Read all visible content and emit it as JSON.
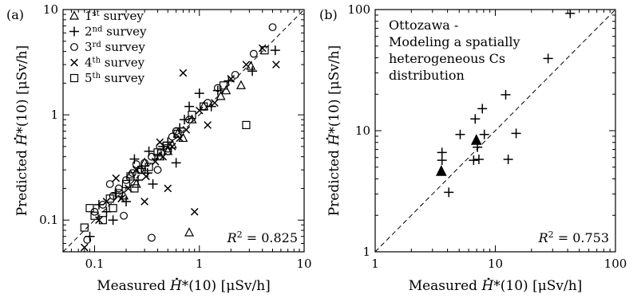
{
  "chart_data": [
    {
      "type": "scatter",
      "panel_label": "(a)",
      "xlabel": {
        "pre": "Measured ",
        "sym": "H",
        "post": "*(10) [μSv/h]"
      },
      "ylabel": {
        "pre": "Predicted ",
        "sym": "H",
        "post": "*(10) [μSv/h]"
      },
      "xscale": "log",
      "yscale": "log",
      "xlim": [
        0.05,
        10
      ],
      "ylim": [
        0.05,
        10
      ],
      "x_ticks": [
        {
          "v": 0.1,
          "label": "0.1"
        },
        {
          "v": 1,
          "label": "1"
        },
        {
          "v": 10,
          "label": "10"
        }
      ],
      "y_ticks": [
        {
          "v": 0.1,
          "label": "0.1"
        },
        {
          "v": 1,
          "label": "1"
        },
        {
          "v": 10,
          "label": "10"
        }
      ],
      "reference_line": "1:1 dashed",
      "legend_position": "top-left",
      "r2": {
        "sym": "R",
        "sup": "2",
        "text": " = 0.825"
      },
      "series": [
        {
          "name": "1st survey",
          "name_parts": [
            "1",
            "st",
            " survey"
          ],
          "marker": "triangle",
          "points": [
            [
              0.19,
              0.17
            ],
            [
              0.25,
              0.22
            ],
            [
              0.3,
              0.35
            ],
            [
              0.42,
              0.4
            ],
            [
              0.55,
              0.52
            ],
            [
              0.7,
              0.6
            ],
            [
              0.85,
              0.9
            ],
            [
              1.1,
              1.2
            ],
            [
              1.6,
              1.5
            ],
            [
              2.5,
              1.9
            ],
            [
              3.1,
              2.9
            ],
            [
              0.62,
              0.66
            ],
            [
              0.22,
              0.27
            ],
            [
              0.8,
              0.076
            ],
            [
              1.8,
              1.7
            ],
            [
              0.5,
              0.45
            ]
          ]
        },
        {
          "name": "2nd survey",
          "name_parts": [
            "2",
            "nd",
            " survey"
          ],
          "marker": "plus",
          "points": [
            [
              0.09,
              0.07
            ],
            [
              0.13,
              0.12
            ],
            [
              0.16,
              0.18
            ],
            [
              0.2,
              0.15
            ],
            [
              0.26,
              0.24
            ],
            [
              0.32,
              0.28
            ],
            [
              0.4,
              0.42
            ],
            [
              0.5,
              0.55
            ],
            [
              0.65,
              0.75
            ],
            [
              0.8,
              1.2
            ],
            [
              1.0,
              1.6
            ],
            [
              1.3,
              1.2
            ],
            [
              1.9,
              2.1
            ],
            [
              3.2,
              2.6
            ],
            [
              5.3,
              4.1
            ],
            [
              0.28,
              0.31
            ],
            [
              0.36,
              0.22
            ],
            [
              0.45,
              0.5
            ],
            [
              0.15,
              0.1
            ],
            [
              0.6,
              0.35
            ],
            [
              0.72,
              0.9
            ],
            [
              0.24,
              0.38
            ],
            [
              0.11,
              0.14
            ],
            [
              1.5,
              1.7
            ],
            [
              0.33,
              0.45
            ]
          ]
        },
        {
          "name": "3rd survey",
          "name_parts": [
            "3",
            "rd",
            " survey"
          ],
          "marker": "circle",
          "points": [
            [
              0.085,
              0.065
            ],
            [
              0.1,
              0.12
            ],
            [
              0.12,
              0.14
            ],
            [
              0.15,
              0.17
            ],
            [
              0.17,
              0.2
            ],
            [
              0.2,
              0.24
            ],
            [
              0.23,
              0.28
            ],
            [
              0.27,
              0.3
            ],
            [
              0.3,
              0.35
            ],
            [
              0.35,
              0.4
            ],
            [
              0.42,
              0.5
            ],
            [
              0.5,
              0.45
            ],
            [
              0.6,
              0.7
            ],
            [
              0.8,
              0.9
            ],
            [
              1.2,
              1.3
            ],
            [
              1.5,
              1.8
            ],
            [
              2.2,
              2.4
            ],
            [
              3.3,
              3.8
            ],
            [
              5.0,
              6.8
            ],
            [
              0.35,
              0.068
            ],
            [
              0.14,
              0.22
            ],
            [
              0.55,
              0.62
            ],
            [
              0.19,
              0.11
            ],
            [
              0.25,
              0.34
            ],
            [
              0.4,
              0.3
            ]
          ]
        },
        {
          "name": "4th survey",
          "name_parts": [
            "4",
            "th",
            " survey"
          ],
          "marker": "cross",
          "points": [
            [
              0.08,
              0.055
            ],
            [
              0.11,
              0.1
            ],
            [
              0.13,
              0.15
            ],
            [
              0.18,
              0.16
            ],
            [
              0.21,
              0.2
            ],
            [
              0.25,
              0.3
            ],
            [
              0.31,
              0.26
            ],
            [
              0.38,
              0.36
            ],
            [
              0.45,
              0.4
            ],
            [
              0.55,
              0.5
            ],
            [
              0.65,
              0.6
            ],
            [
              0.75,
              0.72
            ],
            [
              1.0,
              1.1
            ],
            [
              1.4,
              1.3
            ],
            [
              2.0,
              2.2
            ],
            [
              2.8,
              3.0
            ],
            [
              4.0,
              4.3
            ],
            [
              5.4,
              3.0
            ],
            [
              0.7,
              2.5
            ],
            [
              0.9,
              0.12
            ],
            [
              0.5,
              0.2
            ],
            [
              0.3,
              0.15
            ],
            [
              1.2,
              0.8
            ],
            [
              0.16,
              0.25
            ],
            [
              0.42,
              0.55
            ]
          ]
        },
        {
          "name": "5th survey",
          "name_parts": [
            "5",
            "th",
            " survey"
          ],
          "marker": "square",
          "points": [
            [
              0.08,
              0.085
            ],
            [
              0.1,
              0.11
            ],
            [
              0.12,
              0.1
            ],
            [
              0.14,
              0.16
            ],
            [
              0.17,
              0.18
            ],
            [
              0.2,
              0.22
            ],
            [
              0.24,
              0.2
            ],
            [
              0.28,
              0.3
            ],
            [
              0.33,
              0.32
            ],
            [
              0.4,
              0.44
            ],
            [
              0.5,
              0.48
            ],
            [
              0.62,
              0.66
            ],
            [
              0.85,
              1.0
            ],
            [
              1.1,
              1.2
            ],
            [
              1.7,
              1.9
            ],
            [
              2.8,
              0.8
            ],
            [
              4.2,
              4.1
            ],
            [
              0.09,
              0.13
            ],
            [
              0.15,
              0.13
            ],
            [
              0.22,
              0.26
            ]
          ]
        }
      ]
    },
    {
      "type": "scatter",
      "panel_label": "(b)",
      "xlabel": {
        "pre": "Measured ",
        "sym": "H",
        "post": "*(10) [μSv/h]"
      },
      "ylabel": {
        "pre": "Predicted ",
        "sym": "H",
        "post": "*(10) [μSv/h]"
      },
      "xscale": "log",
      "yscale": "log",
      "xlim": [
        1,
        100
      ],
      "ylim": [
        1,
        100
      ],
      "x_ticks": [
        {
          "v": 1,
          "label": "1"
        },
        {
          "v": 10,
          "label": "10"
        },
        {
          "v": 100,
          "label": "100"
        }
      ],
      "y_ticks": [
        {
          "v": 1,
          "label": "1"
        },
        {
          "v": 10,
          "label": "10"
        },
        {
          "v": 100,
          "label": "100"
        }
      ],
      "reference_line": "1:1 dashed",
      "annotation": [
        "Ottozawa -",
        "Modeling a spatially",
        "heterogeneous Cs",
        "distribution"
      ],
      "r2": {
        "sym": "R",
        "sup": "2",
        "text": " = 0.753"
      },
      "series": [
        {
          "marker": "plus",
          "points": [
            [
              3.6,
              6.6
            ],
            [
              3.6,
              5.7
            ],
            [
              4.1,
              3.1
            ],
            [
              5.1,
              9.3
            ],
            [
              6.6,
              5.7
            ],
            [
              6.8,
              12.5
            ],
            [
              7.1,
              7.3
            ],
            [
              7.3,
              5.8
            ],
            [
              7.8,
              15.2
            ],
            [
              8.1,
              9.3
            ],
            [
              12.2,
              19.8
            ],
            [
              12.8,
              5.8
            ],
            [
              14.9,
              9.5
            ],
            [
              27.5,
              39.5
            ],
            [
              42,
              93
            ]
          ]
        },
        {
          "marker": "filled-triangle",
          "points": [
            [
              3.55,
              4.6
            ],
            [
              6.95,
              8.3
            ]
          ]
        }
      ]
    }
  ]
}
